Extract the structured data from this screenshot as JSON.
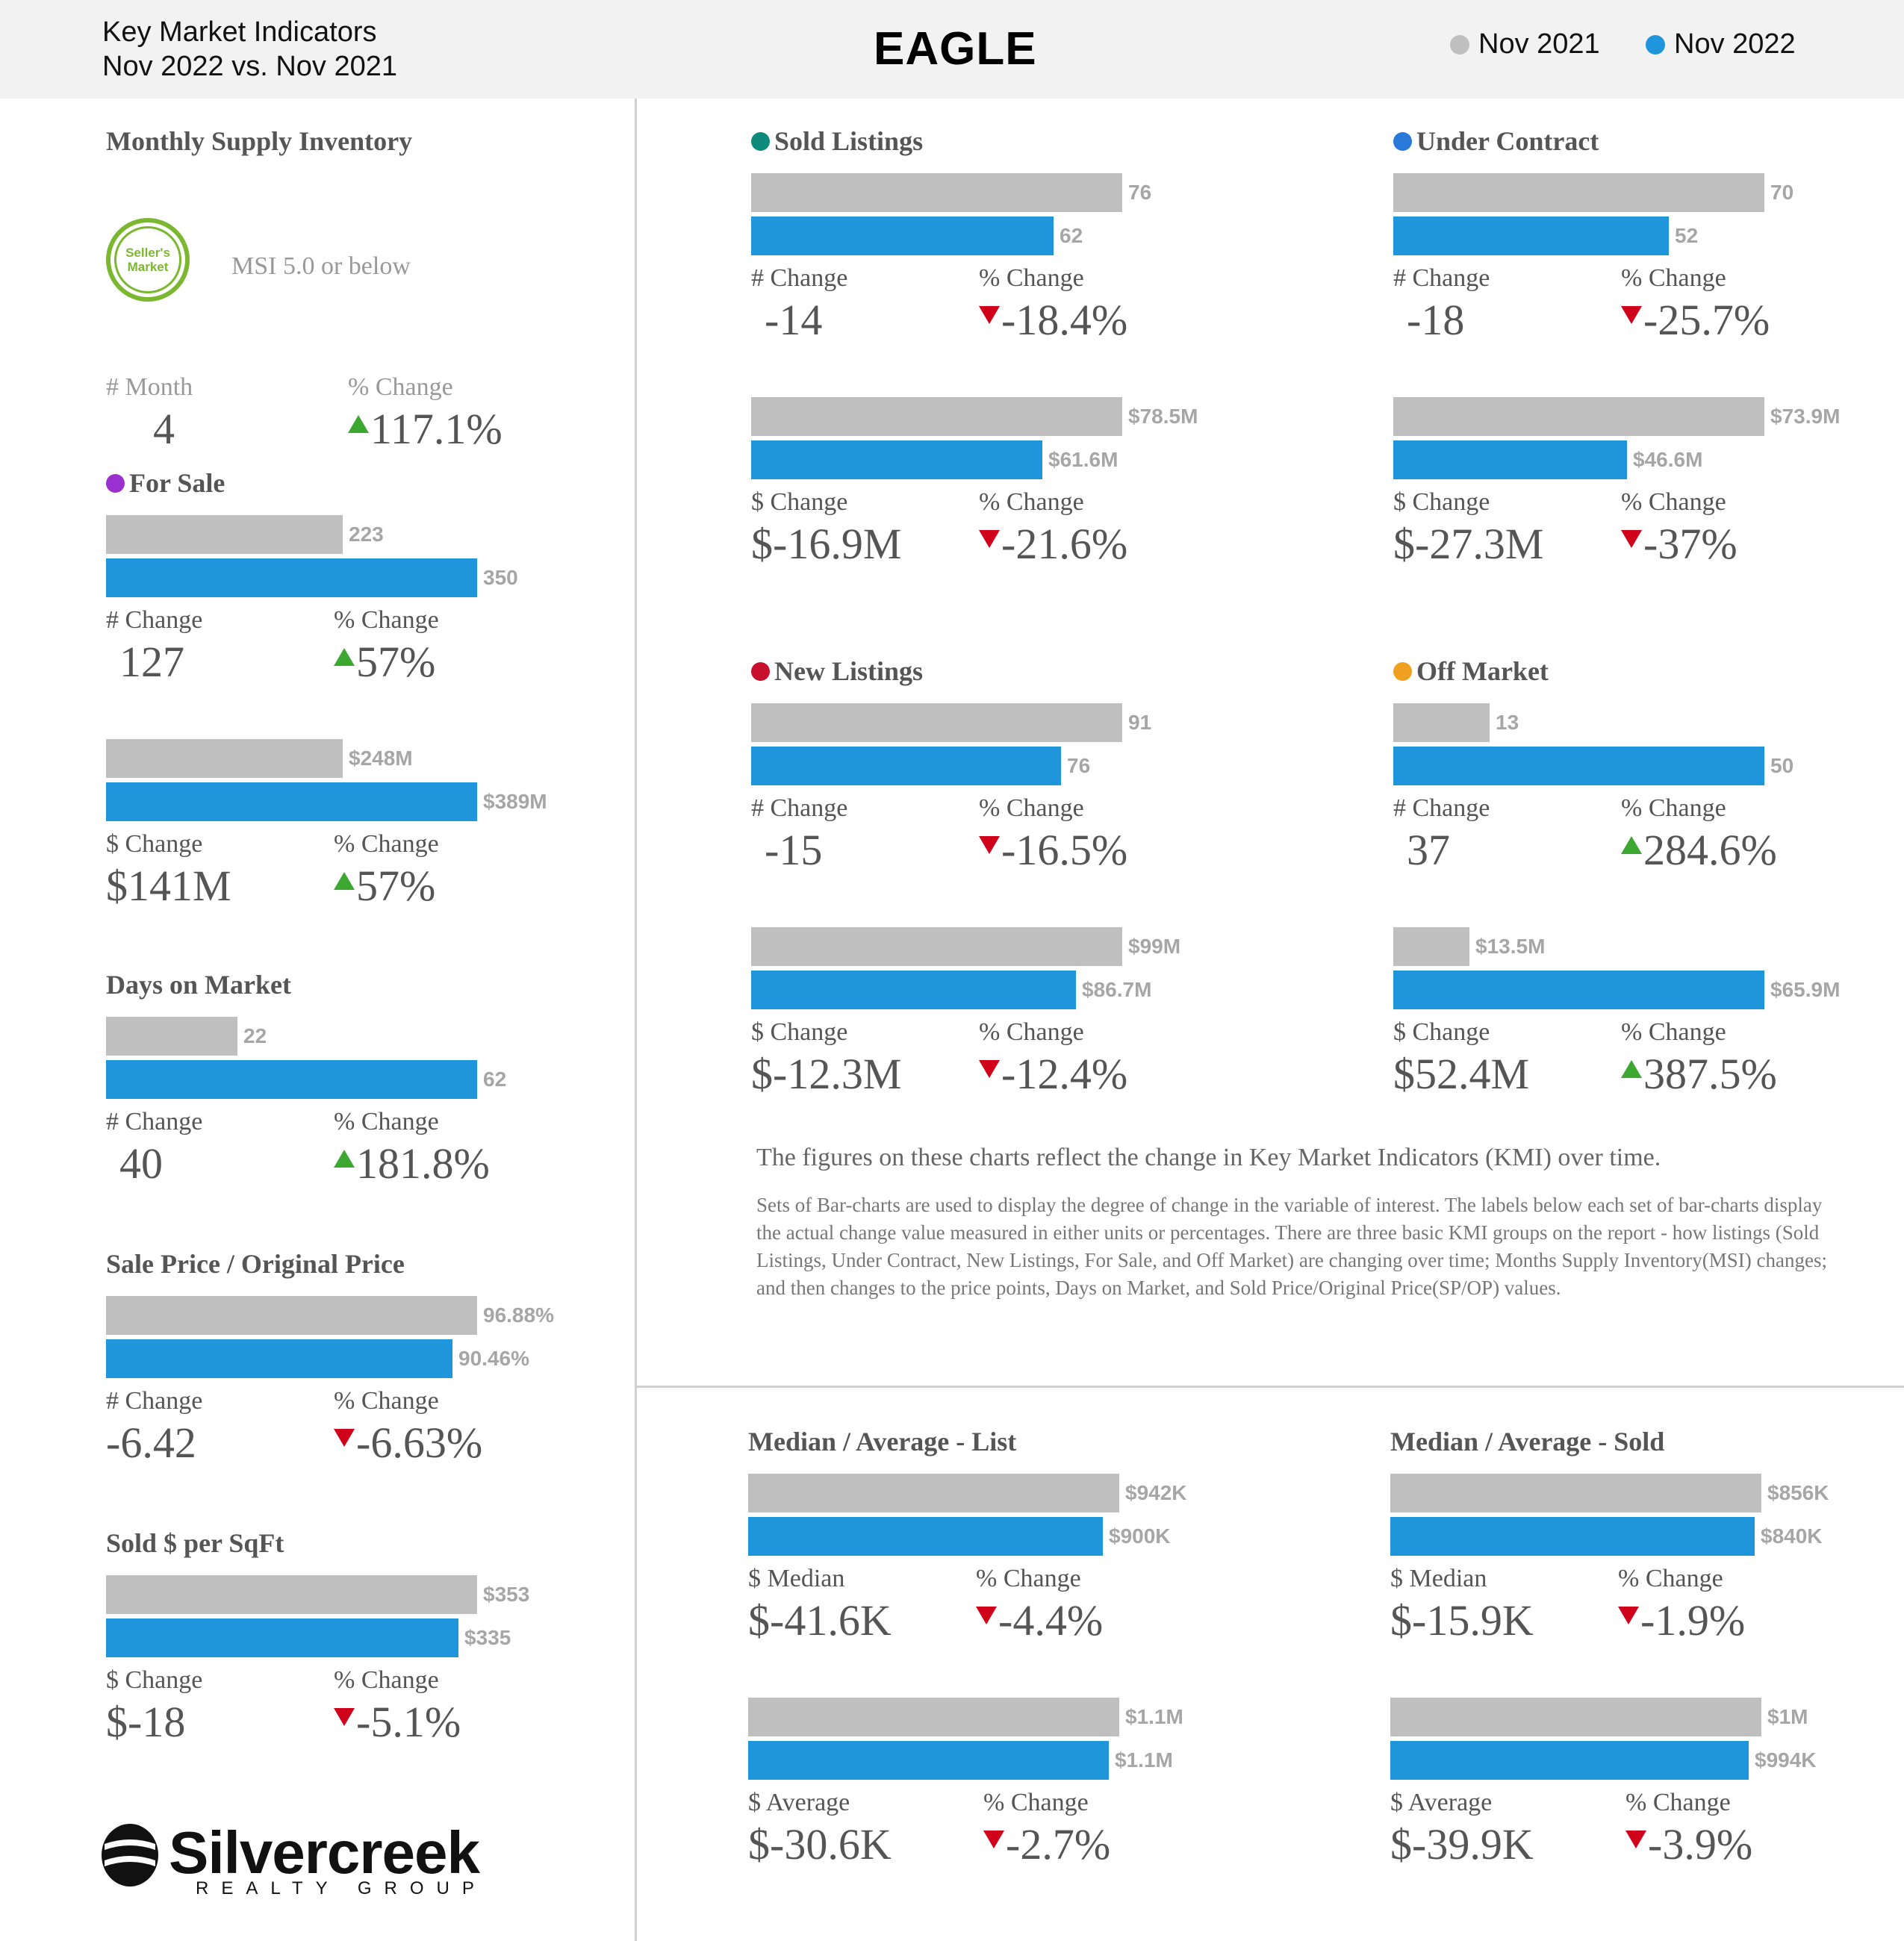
{
  "header": {
    "line1": "Key Market Indicators",
    "line2": "Nov 2022 vs. Nov 2021",
    "title": "EAGLE",
    "legend": [
      {
        "label": "Nov 2021",
        "color": "#bfbfbf"
      },
      {
        "label": "Nov 2022",
        "color": "#1f96dc"
      }
    ]
  },
  "msi": {
    "title": "Monthly Supply Inventory",
    "badge": "Seller's Market",
    "note": "MSI 5.0 or below",
    "label1": "# Month",
    "value1": "4",
    "label2": "% Change",
    "value2": "117.1%",
    "dir2": "up"
  },
  "paragraph": {
    "lead": "The figures on these charts reflect the change in Key Market Indicators (KMI) over time.",
    "body": "Sets of Bar-charts are used to display the degree of change in the variable of interest. The labels below each set of bar-charts display the actual change value measured in either units or percentages. There are three basic KMI groups on the report - how listings (Sold Listings, Under Contract, New Listings, For Sale, and Off Market) are changing over time; Months Supply Inventory(MSI) changes; and then changes to the price points, Days on Market, and Sold Price/Original Price(SP/OP) values."
  },
  "brand": {
    "name": "Silvercreek",
    "sub": "REALTY GROUP"
  },
  "chart_data": {
    "type": "bar",
    "series_names": [
      "Nov 2021",
      "Nov 2022"
    ],
    "sections": [
      {
        "title": "For Sale",
        "dot": "#9b30d0",
        "charts": [
          {
            "values": [
              223,
              350
            ],
            "labels": [
              "223",
              "350"
            ],
            "label1": "# Change",
            "value1": "127",
            "label2": "% Change",
            "value2": "57%",
            "dir": "up"
          },
          {
            "values": [
              248,
              389
            ],
            "labels": [
              "$248M",
              "$389M"
            ],
            "label1": "$ Change",
            "value1": "$141M",
            "label2": "% Change",
            "value2": "57%",
            "dir": "up"
          }
        ]
      },
      {
        "title": "Days on Market",
        "charts": [
          {
            "values": [
              22,
              62
            ],
            "labels": [
              "22",
              "62"
            ],
            "label1": "# Change",
            "value1": "40",
            "label2": "% Change",
            "value2": "181.8%",
            "dir": "up"
          }
        ]
      },
      {
        "title": "Sale Price / Original Price",
        "charts": [
          {
            "values": [
              96.88,
              90.46
            ],
            "labels": [
              "96.88%",
              "90.46%"
            ],
            "label1": "# Change",
            "value1": "-6.42",
            "label2": "% Change",
            "value2": "-6.63%",
            "dir": "down"
          }
        ]
      },
      {
        "title": "Sold $ per SqFt",
        "charts": [
          {
            "values": [
              353,
              335
            ],
            "labels": [
              "$353",
              "$335"
            ],
            "label1": "$ Change",
            "value1": "$-18",
            "label2": "% Change",
            "value2": "-5.1%",
            "dir": "down"
          }
        ]
      },
      {
        "title": "Sold Listings",
        "dot": "#0e8a7b",
        "charts": [
          {
            "values": [
              76,
              62
            ],
            "labels": [
              "76",
              "62"
            ],
            "label1": "# Change",
            "value1": "-14",
            "label2": "% Change",
            "value2": "-18.4%",
            "dir": "down"
          },
          {
            "values": [
              78.5,
              61.6
            ],
            "labels": [
              "$78.5M",
              "$61.6M"
            ],
            "label1": "$ Change",
            "value1": "$-16.9M",
            "label2": "% Change",
            "value2": "-21.6%",
            "dir": "down"
          }
        ]
      },
      {
        "title": "Under Contract",
        "dot": "#2979d9",
        "charts": [
          {
            "values": [
              70,
              52
            ],
            "labels": [
              "70",
              "52"
            ],
            "label1": "# Change",
            "value1": "-18",
            "label2": "% Change",
            "value2": "-25.7%",
            "dir": "down"
          },
          {
            "values": [
              73.9,
              46.6
            ],
            "labels": [
              "$73.9M",
              "$46.6M"
            ],
            "label1": "$ Change",
            "value1": "$-27.3M",
            "label2": "% Change",
            "value2": "-37%",
            "dir": "down"
          }
        ]
      },
      {
        "title": "New Listings",
        "dot": "#c8102e",
        "charts": [
          {
            "values": [
              91,
              76
            ],
            "labels": [
              "91",
              "76"
            ],
            "label1": "# Change",
            "value1": "-15",
            "label2": "% Change",
            "value2": "-16.5%",
            "dir": "down"
          },
          {
            "values": [
              99,
              86.7
            ],
            "labels": [
              "$99M",
              "$86.7M"
            ],
            "label1": "$ Change",
            "value1": "$-12.3M",
            "label2": "% Change",
            "value2": "-12.4%",
            "dir": "down"
          }
        ]
      },
      {
        "title": "Off Market",
        "dot": "#f0a020",
        "charts": [
          {
            "values": [
              13,
              50
            ],
            "labels": [
              "13",
              "50"
            ],
            "label1": "# Change",
            "value1": "37",
            "label2": "% Change",
            "value2": "284.6%",
            "dir": "up"
          },
          {
            "values": [
              13.5,
              65.9
            ],
            "labels": [
              "$13.5M",
              "$65.9M"
            ],
            "label1": "$ Change",
            "value1": "$52.4M",
            "label2": "% Change",
            "value2": "387.5%",
            "dir": "up"
          }
        ]
      },
      {
        "title": "Median / Average - List",
        "charts": [
          {
            "values": [
              942,
              900
            ],
            "labels": [
              "$942K",
              "$900K"
            ],
            "label1": "$ Median",
            "value1": "$-41.6K",
            "label2": "% Change",
            "value2": "-4.4%",
            "dir": "down"
          },
          {
            "values": [
              1.1,
              1.07
            ],
            "labels": [
              "$1.1M",
              "$1.1M"
            ],
            "label1": "$ Average",
            "value1": "$-30.6K",
            "label2": "% Change",
            "value2": "-2.7%",
            "dir": "down"
          }
        ]
      },
      {
        "title": "Median / Average - Sold",
        "charts": [
          {
            "values": [
              856,
              840
            ],
            "labels": [
              "$856K",
              "$840K"
            ],
            "label1": "$ Median",
            "value1": "$-15.9K",
            "label2": "% Change",
            "value2": "-1.9%",
            "dir": "down"
          },
          {
            "values": [
              1.03,
              0.994
            ],
            "labels": [
              "$1M",
              "$994K"
            ],
            "label1": "$ Average",
            "value1": "$-39.9K",
            "label2": "% Change",
            "value2": "-3.9%",
            "dir": "down"
          }
        ]
      }
    ]
  }
}
